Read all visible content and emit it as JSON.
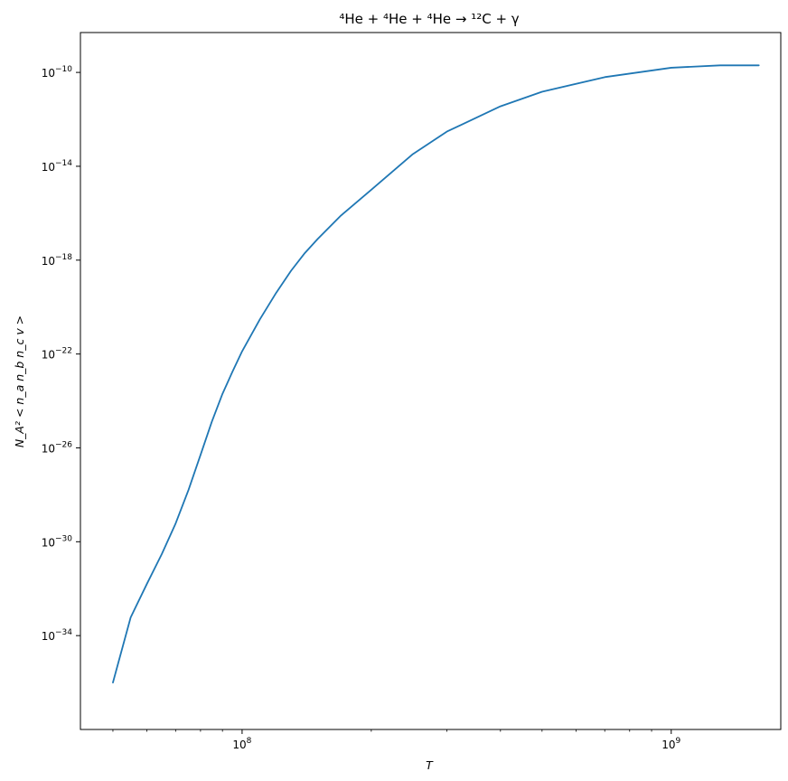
{
  "chart_data": {
    "type": "line",
    "title": "⁴He + ⁴He + ⁴He → ¹²C + γ",
    "xlabel": "T",
    "ylabel": "N_A² < n_a n_b n_c v >",
    "x_scale": "log",
    "y_scale": "log",
    "xlim": [
      42000000,
      1800000000
    ],
    "ylim": [
      1e-38,
      5e-09
    ],
    "x_major_ticks": [
      {
        "value": 100000000,
        "label_base": "10",
        "label_exp": "8"
      },
      {
        "value": 1000000000,
        "label_base": "10",
        "label_exp": "9"
      }
    ],
    "y_major_ticks": [
      {
        "value": 1e-10,
        "label_base": "10",
        "label_exp": "−10"
      },
      {
        "value": 1e-14,
        "label_base": "10",
        "label_exp": "−14"
      },
      {
        "value": 1e-18,
        "label_base": "10",
        "label_exp": "−18"
      },
      {
        "value": 1e-22,
        "label_base": "10",
        "label_exp": "−22"
      },
      {
        "value": 1e-26,
        "label_base": "10",
        "label_exp": "−26"
      },
      {
        "value": 1e-30,
        "label_base": "10",
        "label_exp": "−30"
      },
      {
        "value": 1e-34,
        "label_base": "10",
        "label_exp": "−34"
      }
    ],
    "grid": false,
    "legend": "none",
    "series": [
      {
        "color": "#1f77b4",
        "x": [
          50000000,
          55000000,
          60000000,
          65000000,
          70000000,
          75000000,
          80000000,
          85000000,
          90000000,
          95000000,
          100000000,
          110000000,
          120000000,
          130000000,
          140000000,
          150000000,
          170000000,
          200000000,
          250000000,
          300000000,
          400000000,
          500000000,
          700000000,
          1000000000,
          1300000000,
          1600000000
        ],
        "y": [
          1e-36,
          6e-34,
          1.6e-32,
          3e-31,
          6e-30,
          1.6e-28,
          5e-27,
          1.3e-25,
          2e-24,
          1.8e-23,
          1.3e-22,
          3e-21,
          4e-20,
          3.5e-19,
          2e-18,
          8e-18,
          8e-17,
          1e-15,
          3.3e-14,
          3e-13,
          3.6e-12,
          1.5e-11,
          6.3e-11,
          1.58e-10,
          2e-10,
          2e-10
        ]
      }
    ]
  }
}
